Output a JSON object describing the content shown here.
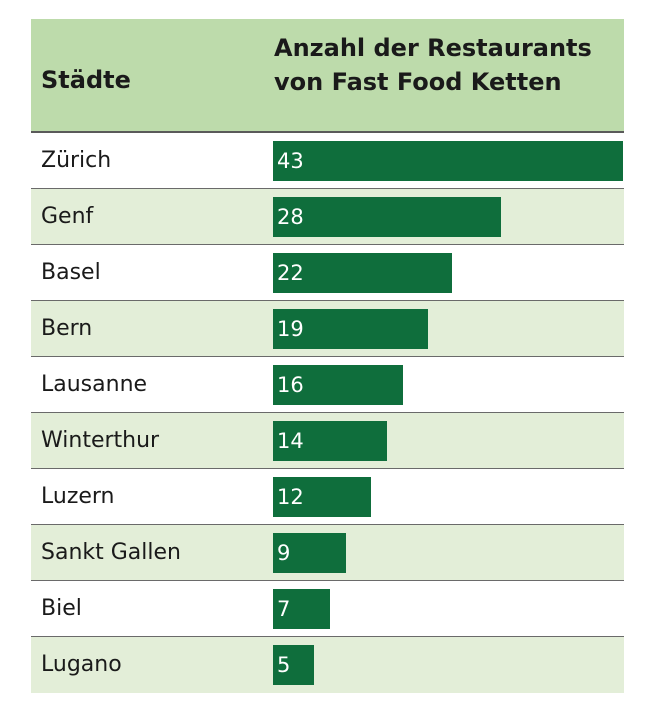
{
  "chart_data": {
    "type": "table",
    "headers": {
      "city": "Städte",
      "value": "Anzahl der Restaurants von Fast Food Ketten"
    },
    "categories": [
      "Zürich",
      "Genf",
      "Basel",
      "Bern",
      "Lausanne",
      "Winterthur",
      "Luzern",
      "Sankt Gallen",
      "Biel",
      "Lugano"
    ],
    "values": [
      43,
      28,
      22,
      19,
      16,
      14,
      12,
      9,
      7,
      5
    ],
    "xlim": [
      0,
      43
    ],
    "colors": {
      "bar": "#0f6e3c",
      "header_bg": "#bddbab",
      "row_alt_bg": "#e3eed8",
      "row_bg": "#ffffff"
    }
  }
}
